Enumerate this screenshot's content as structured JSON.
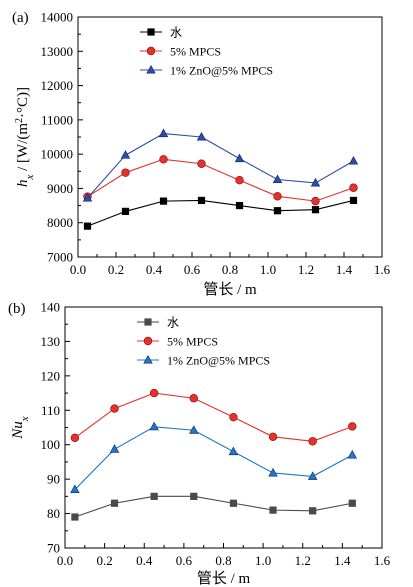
{
  "chart_data": [
    {
      "type": "line",
      "panel_label": "(a)",
      "xlabel": "管长 / m",
      "ylabel_var": "h",
      "ylabel_sub": "x",
      "ylabel_unit": " / [W/(m",
      "ylabel_sup": "2",
      "ylabel_tail": "·°C)]",
      "xlim": [
        0.0,
        1.6
      ],
      "ylim": [
        7000,
        14000
      ],
      "xticks": [
        "0.0",
        "0.2",
        "0.4",
        "0.6",
        "0.8",
        "1.0",
        "1.2",
        "1.4",
        "1.6"
      ],
      "yticks": [
        "7000",
        "8000",
        "9000",
        "10000",
        "11000",
        "12000",
        "13000",
        "14000"
      ],
      "legend_position": "top-left",
      "x": [
        0.05,
        0.25,
        0.45,
        0.65,
        0.85,
        1.05,
        1.25,
        1.45
      ],
      "series": [
        {
          "name": "水",
          "color": "#000000",
          "marker": "square",
          "values": [
            7900,
            8330,
            8630,
            8650,
            8500,
            8350,
            8380,
            8650
          ]
        },
        {
          "name": "5% MPCS",
          "color": "#e8302a",
          "marker": "circle",
          "values": [
            8760,
            9460,
            9850,
            9720,
            9240,
            8770,
            8630,
            9020
          ]
        },
        {
          "name": "1% ZnO@5% MPCS",
          "color": "#2b4fa6",
          "marker": "triangle",
          "values": [
            8720,
            9970,
            10600,
            10500,
            9870,
            9260,
            9160,
            9800
          ]
        }
      ]
    },
    {
      "type": "line",
      "panel_label": "(b)",
      "xlabel": "管长 / m",
      "ylabel_var": "Nu",
      "ylabel_sub": "x",
      "ylabel_unit": "",
      "ylabel_sup": "",
      "ylabel_tail": "",
      "xlim": [
        0.0,
        1.6
      ],
      "ylim": [
        70,
        140
      ],
      "xticks": [
        "0.0",
        "0.2",
        "0.4",
        "0.6",
        "0.8",
        "1.0",
        "1.2",
        "1.4",
        "1.6"
      ],
      "yticks": [
        "70",
        "80",
        "90",
        "100",
        "110",
        "120",
        "130",
        "140"
      ],
      "legend_position": "top-left",
      "x": [
        0.05,
        0.25,
        0.45,
        0.65,
        0.85,
        1.05,
        1.25,
        1.45
      ],
      "series": [
        {
          "name": "水",
          "color": "#4a4a4a",
          "marker": "square",
          "values": [
            79,
            83,
            85,
            85,
            83,
            81,
            80.8,
            83
          ]
        },
        {
          "name": "5% MPCS",
          "color": "#e8302a",
          "marker": "circle",
          "values": [
            102,
            110.5,
            115,
            113.5,
            108,
            102.3,
            101,
            105.3
          ]
        },
        {
          "name": "1% ZnO@5% MPCS",
          "color": "#1f77c8",
          "marker": "triangle",
          "values": [
            87,
            98.7,
            105.2,
            104.2,
            98,
            91.8,
            90.8,
            97
          ]
        }
      ]
    }
  ]
}
